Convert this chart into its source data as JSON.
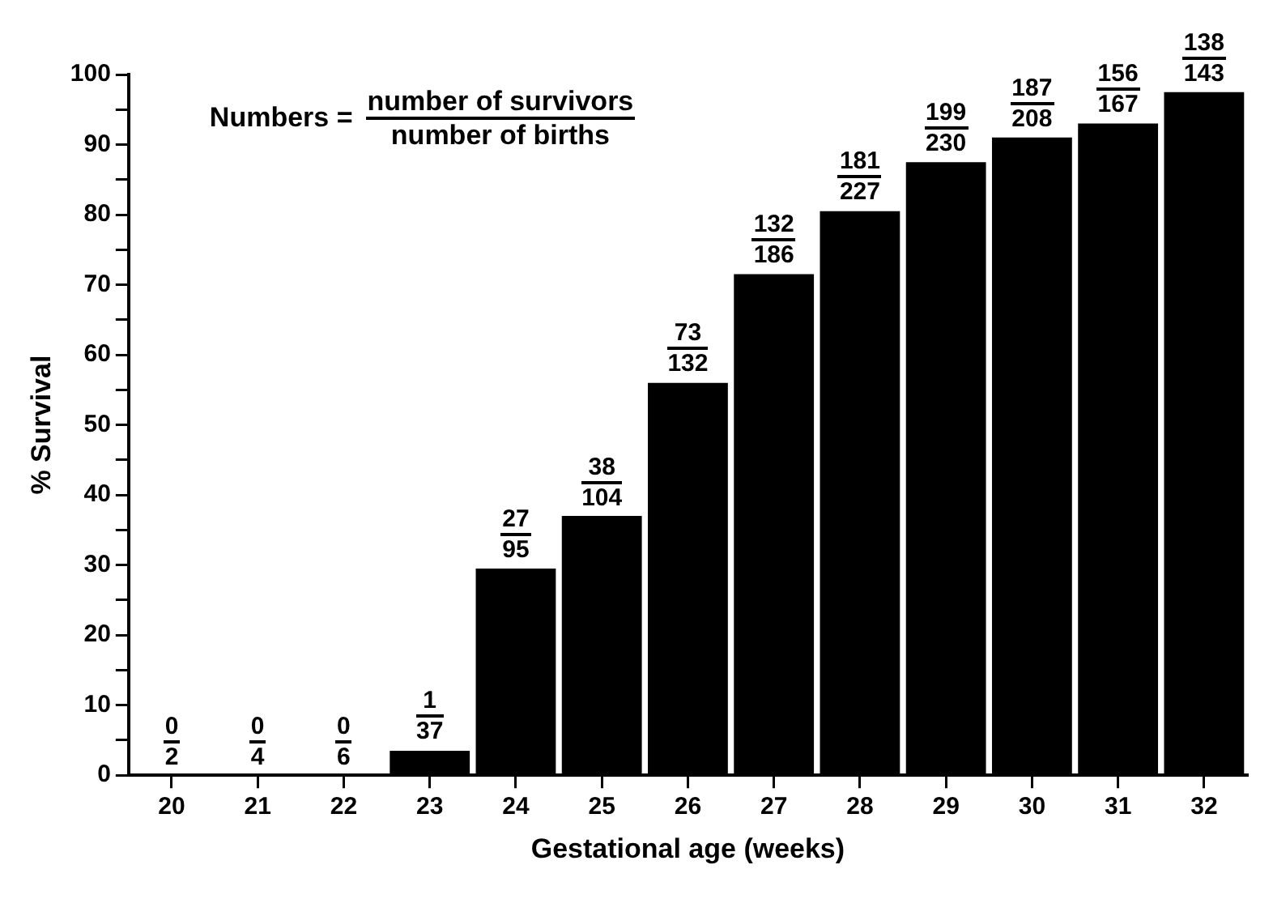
{
  "chart_data": {
    "type": "bar",
    "xlabel": "Gestational age (weeks)",
    "ylabel": "% Survival",
    "categories": [
      "20",
      "21",
      "22",
      "23",
      "24",
      "25",
      "26",
      "27",
      "28",
      "29",
      "30",
      "31",
      "32"
    ],
    "values": [
      0,
      0,
      0,
      3.5,
      29.5,
      37,
      56,
      71.5,
      80.5,
      87.5,
      91,
      93,
      97.5
    ],
    "color": "#000000",
    "ylim": [
      0,
      100
    ],
    "yticks": [
      0,
      {
        "value": 5,
        "label": null
      },
      10,
      {
        "value": 15,
        "label": null
      },
      20,
      {
        "value": 25,
        "label": null
      },
      30,
      {
        "value": 35,
        "label": null
      },
      40,
      {
        "value": 45,
        "label": null
      },
      50,
      {
        "value": 55,
        "label": null
      },
      60,
      {
        "value": 65,
        "label": null
      },
      70,
      {
        "value": 75,
        "label": null
      },
      80,
      {
        "value": 85,
        "label": null
      },
      90,
      {
        "value": 95,
        "label": null
      },
      100
    ],
    "annotations": [
      "Numbers = number of survivors\nnumber of births",
      {
        "text": "0\n2",
        "x": "20",
        "y": 0
      },
      {
        "text": "0\n4",
        "x": "21",
        "y": 0
      },
      {
        "text": "0\n6",
        "x": "22",
        "y": 0
      },
      {
        "text": "1\n37",
        "x": "23",
        "y": 3.5
      },
      {
        "text": "27\n95",
        "x": "24",
        "y": 29.5
      },
      {
        "text": "38\n104",
        "x": "25",
        "y": 37
      },
      {
        "text": "73\n132",
        "x": "26",
        "y": 56
      },
      {
        "text": "132\n186",
        "x": "27",
        "y": 71.5
      },
      {
        "text": "181\n227",
        "x": "28",
        "y": 80.5
      },
      {
        "text": "199\n230",
        "x": "29",
        "y": 87.5
      },
      {
        "text": "187\n208",
        "x": "30",
        "y": 91
      },
      {
        "text": "156\n167",
        "x": "31",
        "y": 93
      },
      {
        "text": "138\n143",
        "x": "32",
        "y": 97.5
      }
    ],
    "grid": false,
    "legend": false
  }
}
